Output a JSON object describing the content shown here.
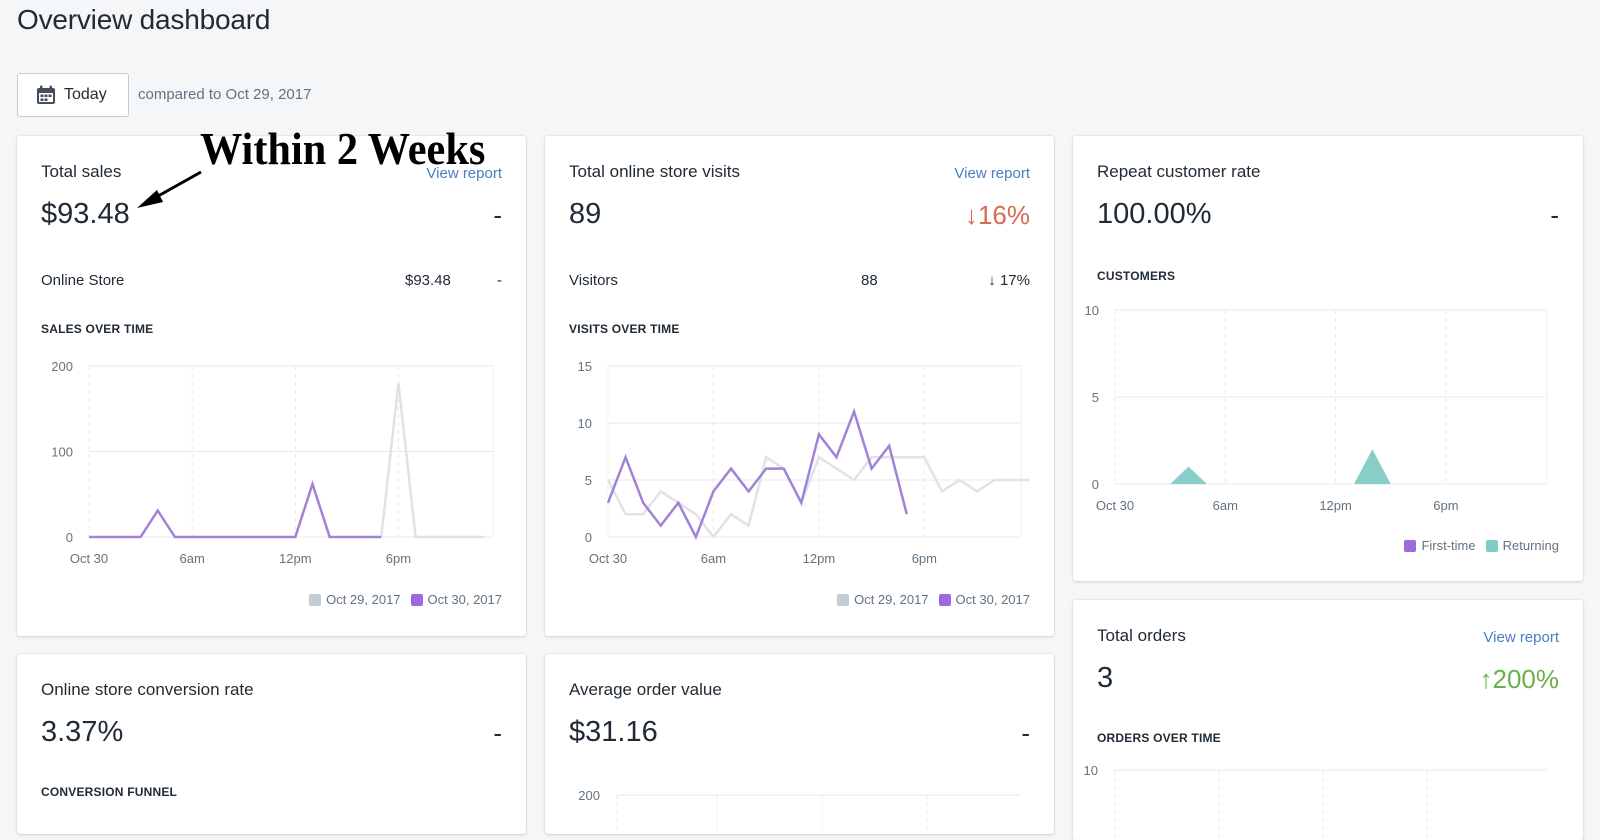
{
  "page": {
    "title": "Overview dashboard"
  },
  "toolbar": {
    "date_label": "Today",
    "compare_text": "compared to Oct 29, 2017"
  },
  "annotation": {
    "text": "Within 2 Weeks"
  },
  "colors": {
    "current": "#a282d6",
    "previous": "#dfe3e8",
    "first_time": "#9c6ade",
    "returning": "#80cbc4",
    "link": "#4a7ebf",
    "down": "#d86a55",
    "up": "#6ab04c"
  },
  "cards": {
    "total_sales": {
      "title": "Total sales",
      "link": "View report",
      "value": "$93.48",
      "delta": "-",
      "row": {
        "label": "Online Store",
        "value": "$93.48",
        "delta": "-"
      },
      "section": "SALES OVER TIME",
      "legend": [
        "Oct 29, 2017",
        "Oct 30, 2017"
      ]
    },
    "visits": {
      "title": "Total online store visits",
      "link": "View report",
      "value": "89",
      "delta": "↓16%",
      "row": {
        "label": "Visitors",
        "value": "88",
        "delta": "↓ 17%"
      },
      "section": "VISITS OVER TIME",
      "legend": [
        "Oct 29, 2017",
        "Oct 30, 2017"
      ]
    },
    "repeat": {
      "title": "Repeat customer rate",
      "value": "100.00%",
      "delta": "-",
      "section": "CUSTOMERS",
      "legend": [
        "First-time",
        "Returning"
      ]
    },
    "conversion": {
      "title": "Online store conversion rate",
      "value": "3.37%",
      "delta": "-",
      "section": "CONVERSION FUNNEL"
    },
    "aov": {
      "title": "Average order value",
      "value": "$31.16",
      "delta": "-"
    },
    "orders": {
      "title": "Total orders",
      "link": "View report",
      "value": "3",
      "delta": "↑200%",
      "section": "ORDERS OVER TIME"
    }
  },
  "chart_data": [
    {
      "id": "sales",
      "type": "line",
      "x_ticks": [
        "Oct 30",
        "6am",
        "12pm",
        "6pm"
      ],
      "x_tick_hours": [
        0,
        6,
        12,
        18
      ],
      "ylim": [
        0,
        200
      ],
      "y_ticks": [
        0,
        100,
        200
      ],
      "series": [
        {
          "name": "Oct 29, 2017",
          "x": [
            17,
            18,
            19,
            20,
            21,
            22,
            23
          ],
          "values": [
            0,
            180,
            0,
            0,
            0,
            0,
            0
          ]
        },
        {
          "name": "Oct 30, 2017",
          "x": [
            0,
            1,
            2,
            3,
            4,
            5,
            6,
            7,
            8,
            9,
            10,
            11,
            12,
            13,
            14,
            15,
            16,
            17
          ],
          "values": [
            0,
            0,
            0,
            0,
            31,
            0,
            0,
            0,
            0,
            0,
            0,
            0,
            0,
            62,
            0,
            0,
            0,
            0
          ]
        }
      ]
    },
    {
      "id": "visits",
      "type": "line",
      "x_ticks": [
        "Oct 30",
        "6am",
        "12pm",
        "6pm"
      ],
      "x_tick_hours": [
        0,
        6,
        12,
        18
      ],
      "ylim": [
        0,
        15
      ],
      "y_ticks": [
        0,
        5,
        10,
        15
      ],
      "series": [
        {
          "name": "Oct 29, 2017",
          "x": [
            0,
            1,
            2,
            3,
            4,
            5,
            6,
            7,
            8,
            9,
            10,
            11,
            12,
            13,
            14,
            15,
            16,
            17,
            18,
            19,
            20,
            21,
            22,
            23,
            24
          ],
          "values": [
            5,
            2,
            2,
            4,
            3,
            2,
            0,
            2,
            1,
            7,
            6,
            3,
            7,
            6,
            5,
            7,
            7,
            7,
            7,
            4,
            5,
            4,
            5,
            5,
            5
          ]
        },
        {
          "name": "Oct 30, 2017",
          "x": [
            0,
            1,
            2,
            3,
            4,
            5,
            6,
            7,
            8,
            9,
            10,
            11,
            12,
            13,
            14,
            15,
            16,
            17,
            18
          ],
          "values": [
            3,
            7,
            3,
            1,
            3,
            0,
            4,
            6,
            4,
            6,
            6,
            3,
            9,
            7,
            11,
            6,
            8,
            2,
            null
          ]
        }
      ]
    },
    {
      "id": "customers",
      "type": "area",
      "x_ticks": [
        "Oct 30",
        "6am",
        "12pm",
        "6pm"
      ],
      "x_tick_hours": [
        0,
        6,
        12,
        18
      ],
      "ylim": [
        0,
        10
      ],
      "y_ticks": [
        0,
        5,
        10
      ],
      "series": [
        {
          "name": "First-time",
          "x": [],
          "values": []
        },
        {
          "name": "Returning",
          "x": [
            3,
            4,
            5,
            13,
            14,
            15
          ],
          "values": [
            0,
            1,
            0,
            0,
            2,
            0
          ]
        }
      ]
    },
    {
      "id": "aov",
      "type": "line",
      "y_ticks": [
        200
      ],
      "series": []
    },
    {
      "id": "orders",
      "type": "line",
      "y_ticks": [
        10
      ],
      "series": []
    }
  ]
}
